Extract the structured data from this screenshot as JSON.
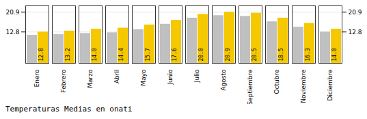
{
  "chart_data": {
    "type": "bar",
    "title": "Temperaturas Medias en onati",
    "categories": [
      "Enero",
      "Febrero",
      "Marzo",
      "Abril",
      "Mayo",
      "Junio",
      "Julio",
      "Agosto",
      "Septiembre",
      "Octubre",
      "Noviembre",
      "Diciembre"
    ],
    "series": [
      {
        "color": "#C0C0C0",
        "values": [
          11.5,
          11.8,
          12.2,
          12.5,
          13.8,
          16.0,
          18.5,
          19.5,
          19.2,
          17.0,
          14.8,
          12.8
        ]
      },
      {
        "color": "#F5C800",
        "values": [
          12.8,
          13.2,
          14.0,
          14.4,
          15.7,
          17.6,
          20.0,
          20.9,
          20.5,
          18.5,
          16.3,
          14.0
        ],
        "data_labels": true,
        "value_labels": [
          "12.8",
          "13.2",
          "14.0",
          "14.4",
          "15.7",
          "17.6",
          "20.0",
          "20.9",
          "20.5",
          "18.5",
          "16.3",
          "14.0"
        ]
      }
    ],
    "ylim": [
      0,
      23.5
    ],
    "yticks": [
      12.8,
      20.9
    ],
    "grid": true
  }
}
